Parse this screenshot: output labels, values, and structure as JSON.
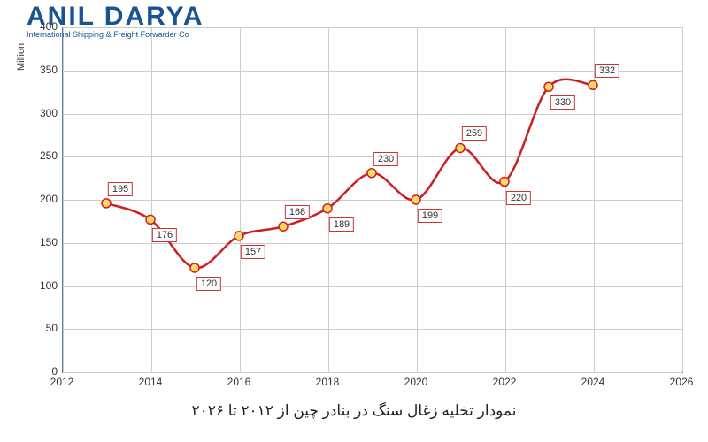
{
  "logo": {
    "title": "ANIL DARYA",
    "subtitle": "International Shipping & Freight Forwarder Co"
  },
  "chart": {
    "type": "line",
    "line_color": "#cc2020",
    "line_width": 2.5,
    "marker_fill": "#ffd966",
    "marker_stroke": "#cc2020",
    "marker_radius": 5,
    "grid_color": "#cccccc",
    "border_color": "#5a7db8",
    "label_border": "#cc3333",
    "label_bg": "#ffffff",
    "label_fontsize": 11,
    "tick_fontsize": 12,
    "xlim": [
      2012,
      2026
    ],
    "ylim": [
      0,
      400
    ],
    "xticks": [
      2012,
      2014,
      2016,
      2018,
      2020,
      2022,
      2024,
      2026
    ],
    "yticks": [
      0,
      50,
      100,
      150,
      200,
      250,
      300,
      350,
      400
    ],
    "ylabel": "Million",
    "data": [
      {
        "x": 2013,
        "y": 195,
        "label": "195",
        "dy": -24
      },
      {
        "x": 2014,
        "y": 176,
        "label": "176",
        "dy": 10
      },
      {
        "x": 2015,
        "y": 120,
        "label": "120",
        "dy": 10
      },
      {
        "x": 2016,
        "y": 157,
        "label": "157",
        "dy": 10
      },
      {
        "x": 2017,
        "y": 168,
        "label": "168",
        "dy": -24
      },
      {
        "x": 2018,
        "y": 189,
        "label": "189",
        "dy": 10
      },
      {
        "x": 2019,
        "y": 230,
        "label": "230",
        "dy": -24
      },
      {
        "x": 2020,
        "y": 199,
        "label": "199",
        "dy": 10
      },
      {
        "x": 2021,
        "y": 259,
        "label": "259",
        "dy": -24
      },
      {
        "x": 2022,
        "y": 220,
        "label": "220",
        "dy": 10
      },
      {
        "x": 2023,
        "y": 330,
        "label": "330",
        "dy": 10
      },
      {
        "x": 2024,
        "y": 332,
        "label": "332",
        "dy": -24
      }
    ]
  },
  "caption": "نمودار تخلیه زغال سنگ در بنادر چین از ۲۰۱۲ تا ۲۰۲۶"
}
